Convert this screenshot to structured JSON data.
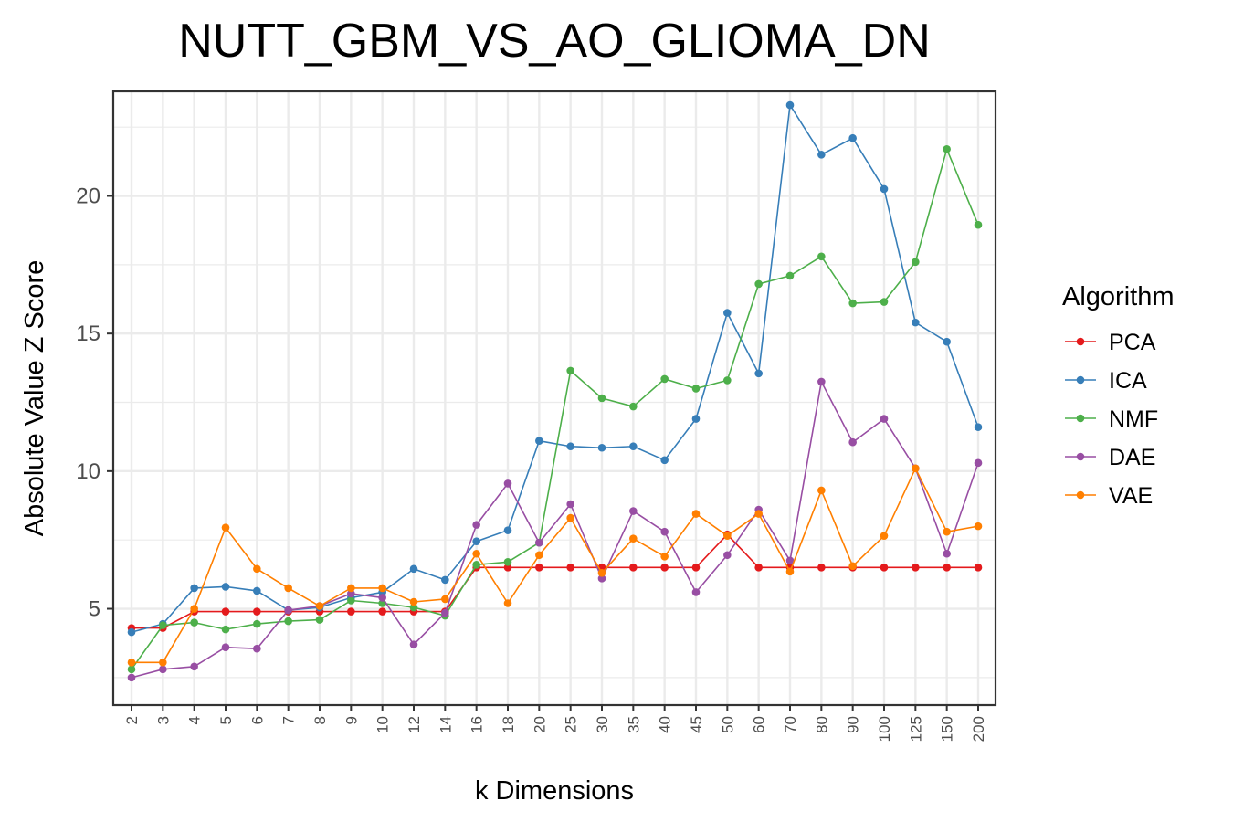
{
  "chart_data": {
    "type": "line",
    "title": "NUTT_GBM_VS_AO_GLIOMA_DN",
    "xlabel": "k Dimensions",
    "ylabel": "Absolute Value Z Score",
    "categories": [
      "2",
      "3",
      "4",
      "5",
      "6",
      "7",
      "8",
      "9",
      "10",
      "12",
      "14",
      "16",
      "18",
      "20",
      "25",
      "30",
      "35",
      "40",
      "45",
      "50",
      "60",
      "70",
      "80",
      "90",
      "100",
      "125",
      "150",
      "200"
    ],
    "ylim": [
      1.5,
      23.8
    ],
    "yticks": [
      5,
      10,
      15,
      20
    ],
    "grid": true,
    "legend": {
      "title": "Algorithm",
      "placement": "right"
    },
    "series": [
      {
        "name": "PCA",
        "color": "#e41a1c",
        "values": [
          4.3,
          4.3,
          4.9,
          4.9,
          4.9,
          4.9,
          4.9,
          4.9,
          4.9,
          4.9,
          4.9,
          6.5,
          6.5,
          6.5,
          6.5,
          6.5,
          6.5,
          6.5,
          6.5,
          7.7,
          6.5,
          6.5,
          6.5,
          6.5,
          6.5,
          6.5,
          6.5,
          6.5
        ]
      },
      {
        "name": "ICA",
        "color": "#377eb8",
        "values": [
          4.15,
          4.45,
          5.75,
          5.8,
          5.65,
          4.95,
          5.05,
          5.4,
          5.6,
          6.45,
          6.05,
          7.45,
          7.85,
          11.1,
          10.9,
          10.85,
          10.9,
          10.4,
          11.9,
          15.75,
          13.55,
          23.3,
          21.5,
          22.1,
          20.25,
          15.4,
          14.7,
          11.6
        ]
      },
      {
        "name": "NMF",
        "color": "#4daf4a",
        "values": [
          2.8,
          4.4,
          4.5,
          4.25,
          4.45,
          4.55,
          4.6,
          5.3,
          5.2,
          5.05,
          4.75,
          6.6,
          6.7,
          7.4,
          13.65,
          12.65,
          12.35,
          13.35,
          13.0,
          13.3,
          16.8,
          17.1,
          17.8,
          16.1,
          16.15,
          17.6,
          21.7,
          18.95
        ]
      },
      {
        "name": "DAE",
        "color": "#984ea3",
        "values": [
          2.5,
          2.8,
          2.9,
          3.6,
          3.55,
          4.95,
          5.1,
          5.55,
          5.4,
          3.7,
          4.85,
          8.05,
          9.55,
          7.4,
          8.8,
          6.1,
          8.55,
          7.8,
          5.6,
          6.95,
          8.6,
          6.75,
          13.25,
          11.05,
          11.9,
          10.1,
          7.0,
          10.3
        ]
      },
      {
        "name": "VAE",
        "color": "#ff7f00",
        "values": [
          3.05,
          3.05,
          5.0,
          7.95,
          6.45,
          5.75,
          5.1,
          5.75,
          5.75,
          5.25,
          5.35,
          7.0,
          5.2,
          6.95,
          8.3,
          6.3,
          7.55,
          6.9,
          8.45,
          7.65,
          8.45,
          6.35,
          9.3,
          6.55,
          7.65,
          10.1,
          7.8,
          8.0
        ]
      }
    ]
  }
}
